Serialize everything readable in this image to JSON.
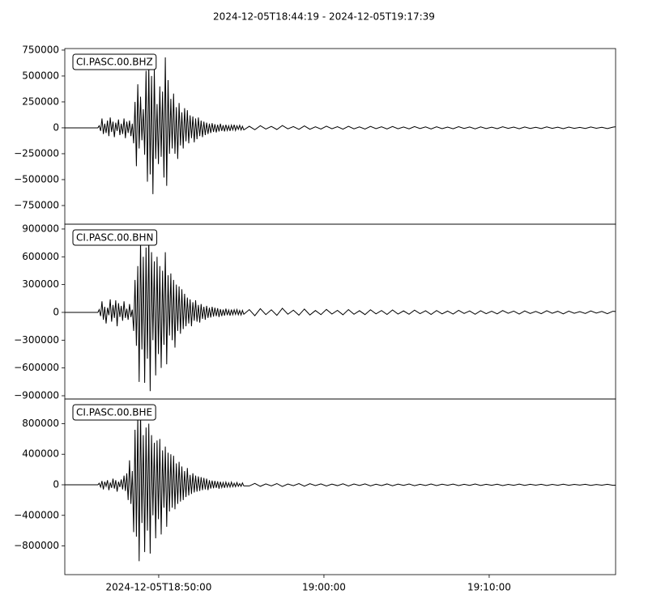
{
  "title": "2024-12-05T18:44:19  -  2024-12-05T19:17:39",
  "chart_data": [
    {
      "type": "line",
      "label": "CI.PASC.00.BHZ",
      "color": "#000000",
      "xlim": [
        0,
        2000
      ],
      "ylim": [
        -930000,
        765000
      ],
      "yticks": [
        {
          "value": -750000,
          "label": "−750000"
        },
        {
          "value": -500000,
          "label": "−500000"
        },
        {
          "value": -250000,
          "label": "−250000"
        },
        0,
        250000,
        500000,
        750000
      ],
      "x": [
        0,
        120,
        125,
        130,
        135,
        140,
        145,
        150,
        155,
        160,
        165,
        170,
        175,
        180,
        185,
        190,
        195,
        200,
        205,
        210,
        215,
        220,
        225,
        230,
        235,
        240,
        245,
        250,
        255,
        260,
        265,
        270,
        275,
        280,
        285,
        290,
        295,
        300,
        305,
        310,
        315,
        320,
        325,
        330,
        335,
        340,
        345,
        350,
        355,
        360,
        365,
        370,
        375,
        380,
        385,
        390,
        395,
        400,
        405,
        410,
        415,
        420,
        425,
        430,
        435,
        440,
        445,
        450,
        455,
        460,
        465,
        470,
        475,
        480,
        485,
        490,
        495,
        500,
        505,
        510,
        515,
        520,
        525,
        530,
        535,
        540,
        545,
        550,
        555,
        560,
        565,
        570,
        575,
        580,
        585,
        590,
        595,
        600,
        605,
        610,
        615,
        620,
        625,
        630,
        635,
        640,
        645,
        650,
        670,
        690,
        710,
        730,
        750,
        770,
        790,
        810,
        830,
        850,
        870,
        890,
        910,
        930,
        950,
        970,
        990,
        1010,
        1030,
        1050,
        1070,
        1090,
        1110,
        1130,
        1150,
        1170,
        1190,
        1210,
        1230,
        1250,
        1270,
        1290,
        1310,
        1330,
        1350,
        1370,
        1390,
        1410,
        1430,
        1450,
        1470,
        1490,
        1510,
        1530,
        1550,
        1570,
        1590,
        1610,
        1630,
        1650,
        1670,
        1690,
        1710,
        1730,
        1750,
        1770,
        1790,
        1810,
        1830,
        1850,
        1870,
        1890,
        1910,
        1930,
        1950,
        1970,
        1990,
        2000
      ],
      "values": [
        0,
        0,
        20000,
        -30000,
        90000,
        -60000,
        40000,
        -50000,
        70000,
        -80000,
        100000,
        -40000,
        60000,
        -90000,
        50000,
        -30000,
        80000,
        -70000,
        40000,
        -60000,
        90000,
        -100000,
        60000,
        -50000,
        70000,
        -80000,
        40000,
        -150000,
        250000,
        -370000,
        420000,
        -200000,
        300000,
        -120000,
        180000,
        -260000,
        550000,
        -520000,
        600000,
        -450000,
        500000,
        -640000,
        570000,
        -300000,
        230000,
        -350000,
        400000,
        -280000,
        350000,
        -480000,
        680000,
        -560000,
        460000,
        -250000,
        280000,
        -200000,
        330000,
        -250000,
        200000,
        -300000,
        240000,
        -170000,
        150000,
        -200000,
        190000,
        -130000,
        170000,
        -150000,
        120000,
        -100000,
        110000,
        -140000,
        90000,
        -110000,
        100000,
        -80000,
        70000,
        -90000,
        60000,
        -70000,
        50000,
        -60000,
        40000,
        -50000,
        45000,
        -40000,
        35000,
        -45000,
        30000,
        -35000,
        40000,
        -30000,
        25000,
        -35000,
        30000,
        -25000,
        20000,
        -30000,
        25000,
        -20000,
        30000,
        -25000,
        20000,
        -15000,
        25000,
        -20000,
        15000,
        -20000,
        15000,
        -18000,
        20000,
        -12000,
        14000,
        -16000,
        22000,
        -10000,
        12000,
        -15000,
        18000,
        -14000,
        10000,
        -12000,
        16000,
        -9000,
        11000,
        -13000,
        15000,
        -10000,
        9000,
        -12000,
        14000,
        -8000,
        10000,
        -11000,
        13000,
        -9000,
        8000,
        -10000,
        12000,
        -7000,
        9000,
        -11000,
        10000,
        -8000,
        7000,
        -9000,
        11000,
        -6000,
        8000,
        -10000,
        9000,
        -7000,
        6000,
        -8000,
        10000,
        -5000,
        7000,
        -9000,
        8000,
        -6000,
        5000,
        -7000,
        9000,
        -5000,
        6000,
        -8000,
        7000,
        -5000,
        4000,
        -6000,
        8000,
        -4000,
        5000,
        -7000,
        6000,
        10000
      ]
    },
    {
      "type": "line",
      "label": "CI.PASC.00.BHN",
      "color": "#000000",
      "xlim": [
        0,
        2000
      ],
      "ylim": [
        -935000,
        952000
      ],
      "yticks": [
        {
          "value": -900000,
          "label": "−900000"
        },
        {
          "value": -600000,
          "label": "−600000"
        },
        {
          "value": -300000,
          "label": "−300000"
        },
        0,
        300000,
        600000,
        900000
      ],
      "x": [
        0,
        120,
        125,
        130,
        135,
        140,
        145,
        150,
        155,
        160,
        165,
        170,
        175,
        180,
        185,
        190,
        195,
        200,
        205,
        210,
        215,
        220,
        225,
        230,
        235,
        240,
        245,
        250,
        255,
        260,
        265,
        270,
        275,
        280,
        285,
        290,
        295,
        300,
        305,
        310,
        315,
        320,
        325,
        330,
        335,
        340,
        345,
        350,
        355,
        360,
        365,
        370,
        375,
        380,
        385,
        390,
        395,
        400,
        405,
        410,
        415,
        420,
        425,
        430,
        435,
        440,
        445,
        450,
        455,
        460,
        465,
        470,
        475,
        480,
        485,
        490,
        495,
        500,
        505,
        510,
        515,
        520,
        525,
        530,
        535,
        540,
        545,
        550,
        555,
        560,
        565,
        570,
        575,
        580,
        585,
        590,
        595,
        600,
        605,
        610,
        615,
        620,
        625,
        630,
        635,
        640,
        645,
        650,
        670,
        690,
        710,
        730,
        750,
        770,
        790,
        810,
        830,
        850,
        870,
        890,
        910,
        930,
        950,
        970,
        990,
        1010,
        1030,
        1050,
        1070,
        1090,
        1110,
        1130,
        1150,
        1170,
        1190,
        1210,
        1230,
        1250,
        1270,
        1290,
        1310,
        1330,
        1350,
        1370,
        1390,
        1410,
        1430,
        1450,
        1470,
        1490,
        1510,
        1530,
        1550,
        1570,
        1590,
        1610,
        1630,
        1650,
        1670,
        1690,
        1710,
        1730,
        1750,
        1770,
        1790,
        1810,
        1830,
        1850,
        1870,
        1890,
        1910,
        1930,
        1950,
        1970,
        1990,
        2000
      ],
      "values": [
        0,
        0,
        30000,
        -40000,
        120000,
        -80000,
        60000,
        -120000,
        50000,
        -30000,
        140000,
        -100000,
        80000,
        -60000,
        130000,
        -150000,
        100000,
        -50000,
        70000,
        -90000,
        120000,
        -60000,
        40000,
        -80000,
        90000,
        -50000,
        30000,
        -200000,
        350000,
        -360000,
        500000,
        -750000,
        780000,
        -400000,
        600000,
        -760000,
        700000,
        -500000,
        820000,
        -850000,
        650000,
        -300000,
        550000,
        -680000,
        600000,
        -450000,
        500000,
        -600000,
        450000,
        -350000,
        650000,
        -560000,
        400000,
        -250000,
        420000,
        -300000,
        350000,
        -380000,
        300000,
        -200000,
        280000,
        -230000,
        250000,
        -180000,
        200000,
        -150000,
        160000,
        -120000,
        140000,
        -150000,
        110000,
        -90000,
        130000,
        -100000,
        80000,
        -110000,
        90000,
        -70000,
        60000,
        -80000,
        70000,
        -60000,
        50000,
        -55000,
        60000,
        -45000,
        50000,
        -40000,
        45000,
        -50000,
        35000,
        -40000,
        30000,
        -35000,
        40000,
        -30000,
        25000,
        -35000,
        30000,
        -25000,
        28000,
        -22000,
        30000,
        -25000,
        20000,
        -28000,
        22000,
        -20000,
        30000,
        -36000,
        40000,
        -24000,
        28000,
        -32000,
        44000,
        -20000,
        24000,
        -30000,
        36000,
        -28000,
        20000,
        -24000,
        32000,
        -18000,
        22000,
        -26000,
        30000,
        -20000,
        18000,
        -24000,
        28000,
        -16000,
        20000,
        -22000,
        26000,
        -18000,
        16000,
        -20000,
        24000,
        -14000,
        18000,
        -22000,
        20000,
        -16000,
        14000,
        -18000,
        22000,
        -12000,
        16000,
        -20000,
        18000,
        -14000,
        12000,
        -16000,
        20000,
        -10000,
        14000,
        -18000,
        16000,
        -12000,
        10000,
        -14000,
        18000,
        -10000,
        12000,
        -16000,
        14000,
        -10000,
        8000,
        -12000,
        16000,
        -8000,
        10000,
        -14000,
        12000,
        10000
      ]
    },
    {
      "type": "line",
      "label": "CI.PASC.00.BHE",
      "color": "#000000",
      "xlim": [
        0,
        2000
      ],
      "ylim": [
        -1176000,
        1123000
      ],
      "xticks": [
        {
          "value": 341,
          "label": "2024-12-05T18:50:00"
        },
        {
          "value": 941,
          "label": "19:00:00"
        },
        {
          "value": 1541,
          "label": "19:10:00"
        }
      ],
      "yticks": [
        {
          "value": -800000,
          "label": "−800000"
        },
        {
          "value": -400000,
          "label": "−400000"
        },
        0,
        400000,
        800000
      ],
      "x": [
        0,
        120,
        125,
        130,
        135,
        140,
        145,
        150,
        155,
        160,
        165,
        170,
        175,
        180,
        185,
        190,
        195,
        200,
        205,
        210,
        215,
        220,
        225,
        230,
        235,
        240,
        245,
        250,
        255,
        260,
        265,
        270,
        275,
        280,
        285,
        290,
        295,
        300,
        305,
        310,
        315,
        320,
        325,
        330,
        335,
        340,
        345,
        350,
        355,
        360,
        365,
        370,
        375,
        380,
        385,
        390,
        395,
        400,
        405,
        410,
        415,
        420,
        425,
        430,
        435,
        440,
        445,
        450,
        455,
        460,
        465,
        470,
        475,
        480,
        485,
        490,
        495,
        500,
        505,
        510,
        515,
        520,
        525,
        530,
        535,
        540,
        545,
        550,
        555,
        560,
        565,
        570,
        575,
        580,
        585,
        590,
        595,
        600,
        605,
        610,
        615,
        620,
        625,
        630,
        635,
        640,
        645,
        650,
        670,
        690,
        710,
        730,
        750,
        770,
        790,
        810,
        830,
        850,
        870,
        890,
        910,
        930,
        950,
        970,
        990,
        1010,
        1030,
        1050,
        1070,
        1090,
        1110,
        1130,
        1150,
        1170,
        1190,
        1210,
        1230,
        1250,
        1270,
        1290,
        1310,
        1330,
        1350,
        1370,
        1390,
        1410,
        1430,
        1450,
        1470,
        1490,
        1510,
        1530,
        1550,
        1570,
        1590,
        1610,
        1630,
        1650,
        1670,
        1690,
        1710,
        1730,
        1750,
        1770,
        1790,
        1810,
        1830,
        1850,
        1870,
        1890,
        1910,
        1930,
        1950,
        1970,
        1990,
        2000
      ],
      "values": [
        0,
        0,
        20000,
        -30000,
        50000,
        -60000,
        40000,
        -20000,
        60000,
        -70000,
        30000,
        -40000,
        80000,
        -50000,
        60000,
        -90000,
        40000,
        -30000,
        70000,
        -60000,
        120000,
        -80000,
        150000,
        -200000,
        320000,
        -250000,
        180000,
        -620000,
        720000,
        -680000,
        900000,
        -1000000,
        980000,
        -500000,
        650000,
        -880000,
        750000,
        -600000,
        800000,
        -900000,
        650000,
        -400000,
        550000,
        -700000,
        580000,
        -450000,
        600000,
        -650000,
        450000,
        -300000,
        500000,
        -550000,
        420000,
        -350000,
        400000,
        -300000,
        380000,
        -320000,
        280000,
        -250000,
        300000,
        -220000,
        240000,
        -200000,
        180000,
        -160000,
        220000,
        -140000,
        130000,
        -120000,
        150000,
        -100000,
        120000,
        -90000,
        110000,
        -80000,
        100000,
        -70000,
        90000,
        -60000,
        80000,
        -70000,
        60000,
        -50000,
        55000,
        -45000,
        50000,
        -40000,
        45000,
        -50000,
        40000,
        -35000,
        30000,
        -40000,
        35000,
        -30000,
        25000,
        -30000,
        35000,
        -25000,
        20000,
        -25000,
        30000,
        -20000,
        15000,
        -20000,
        25000,
        -15000,
        -15000,
        18000,
        -20000,
        12000,
        -14000,
        16000,
        -22000,
        10000,
        -12000,
        15000,
        -18000,
        14000,
        -10000,
        12000,
        -16000,
        9000,
        -11000,
        13000,
        -15000,
        10000,
        -9000,
        12000,
        -14000,
        8000,
        -10000,
        11000,
        -13000,
        9000,
        -8000,
        10000,
        -12000,
        7000,
        -9000,
        11000,
        -10000,
        8000,
        -7000,
        9000,
        -11000,
        6000,
        -8000,
        10000,
        -9000,
        7000,
        -6000,
        8000,
        -10000,
        5000,
        -7000,
        9000,
        -8000,
        6000,
        -5000,
        7000,
        -9000,
        5000,
        -6000,
        8000,
        -7000,
        5000,
        -4000,
        6000,
        -8000,
        4000,
        -5000,
        7000,
        -6000,
        -5000
      ]
    }
  ]
}
